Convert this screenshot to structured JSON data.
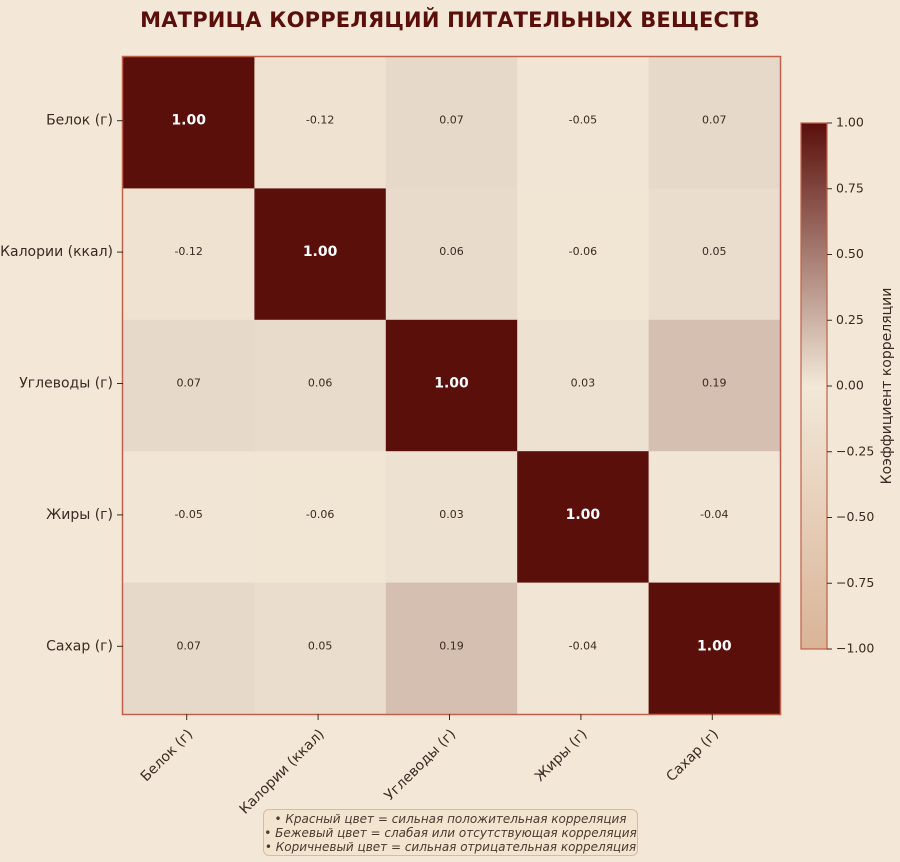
{
  "title": "МАТРИЦА КОРРЕЛЯЦИЙ ПИТАТЕЛЬНЫХ ВЕЩЕСТВ",
  "notes": [
    "• Красный цвет = сильная положительная корреляция",
    "• Бежевый цвет = слабая или отсутствующая корреляция",
    "• Коричневый цвет = сильная отрицательная корреляция"
  ],
  "colors": {
    "background": "#f3e8d8",
    "max": "#5a0f0b",
    "zero": "#f2e8d8",
    "min": "#d9b497",
    "border": "#c0604a",
    "text_dark": "#3a2a22",
    "text_light": "#ffffff"
  },
  "chart_data": {
    "type": "heatmap",
    "title": "МАТРИЦА КОРРЕЛЯЦИЙ ПИТАТЕЛЬНЫХ ВЕЩЕСТВ",
    "rows": [
      "Белок (г)",
      "Калории (ккал)",
      "Углеводы (г)",
      "Жиры (г)",
      "Сахар (г)"
    ],
    "columns": [
      "Белок (г)",
      "Калории (ккал)",
      "Углеводы (г)",
      "Жиры (г)",
      "Сахар (г)"
    ],
    "values": [
      [
        1.0,
        -0.12,
        0.07,
        -0.05,
        0.07
      ],
      [
        -0.12,
        1.0,
        0.06,
        -0.06,
        0.05
      ],
      [
        0.07,
        0.06,
        1.0,
        0.03,
        0.19
      ],
      [
        -0.05,
        -0.06,
        0.03,
        1.0,
        -0.04
      ],
      [
        0.07,
        0.05,
        0.19,
        -0.04,
        1.0
      ]
    ],
    "colorbar": {
      "label": "Коэффициент корреляции",
      "range": [
        -1.0,
        1.0
      ],
      "ticks": [
        "1.00",
        "0.75",
        "0.50",
        "0.25",
        "0.00",
        "−0.25",
        "−0.50",
        "−0.75",
        "−1.00"
      ],
      "tick_values": [
        1.0,
        0.75,
        0.5,
        0.25,
        0.0,
        -0.25,
        -0.5,
        -0.75,
        -1.0
      ]
    }
  }
}
